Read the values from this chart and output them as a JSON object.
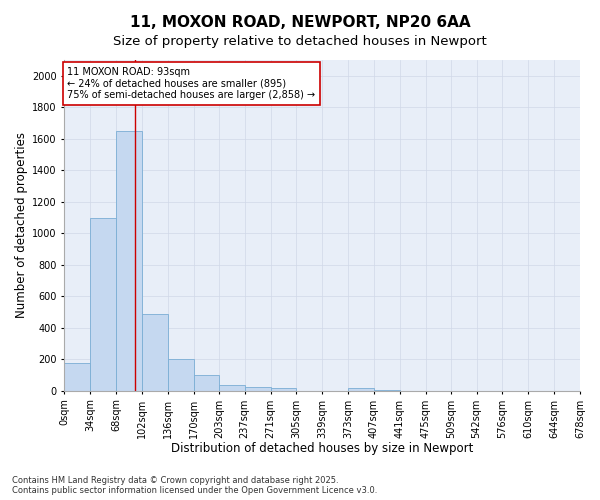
{
  "title": "11, MOXON ROAD, NEWPORT, NP20 6AA",
  "subtitle": "Size of property relative to detached houses in Newport",
  "xlabel": "Distribution of detached houses by size in Newport",
  "ylabel": "Number of detached properties",
  "bar_edges": [
    0,
    34,
    68,
    102,
    136,
    170,
    203,
    237,
    271,
    305,
    339,
    373,
    407,
    441,
    475,
    509,
    542,
    576,
    610,
    644,
    678
  ],
  "bar_heights": [
    175,
    1100,
    1650,
    490,
    200,
    100,
    40,
    25,
    20,
    0,
    0,
    20,
    5,
    0,
    0,
    0,
    0,
    0,
    0,
    0
  ],
  "bar_color": "#c5d8f0",
  "bar_edge_color": "#7aadd4",
  "red_line_x": 93,
  "annotation_line1": "11 MOXON ROAD: 93sqm",
  "annotation_line2": "← 24% of detached houses are smaller (895)",
  "annotation_line3": "75% of semi-detached houses are larger (2,858) →",
  "annotation_box_color": "#ffffff",
  "annotation_box_edge": "#cc0000",
  "red_line_color": "#cc0000",
  "ylim": [
    0,
    2100
  ],
  "yticks": [
    0,
    200,
    400,
    600,
    800,
    1000,
    1200,
    1400,
    1600,
    1800,
    2000
  ],
  "grid_color": "#d0d8e8",
  "background_color": "#e8eef8",
  "fig_background": "#ffffff",
  "footer_line1": "Contains HM Land Registry data © Crown copyright and database right 2025.",
  "footer_line2": "Contains public sector information licensed under the Open Government Licence v3.0.",
  "title_fontsize": 11,
  "subtitle_fontsize": 9.5,
  "axis_label_fontsize": 8.5,
  "tick_fontsize": 7,
  "annotation_fontsize": 7,
  "footer_fontsize": 6
}
